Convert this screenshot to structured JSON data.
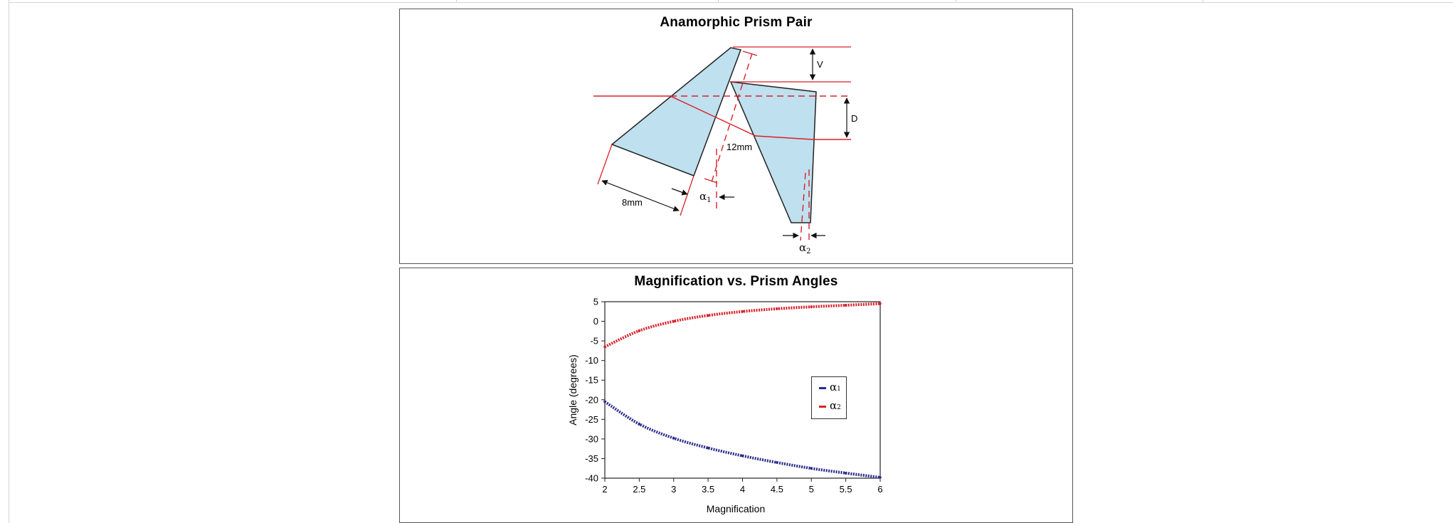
{
  "prism_diagram": {
    "title": "Anamorphic Prism Pair",
    "labels": {
      "v": "V",
      "d": "D",
      "spacing": "12mm",
      "length": "8mm",
      "alpha1": "α",
      "alpha1_sub": "1",
      "alpha2": "α",
      "alpha2_sub": "2"
    },
    "colors": {
      "prism_fill": "#bfe0ee",
      "beam": "#d8202a",
      "outline": "#222222"
    }
  },
  "chart_data": {
    "type": "line",
    "title": "Magnification vs. Prism Angles",
    "xlabel": "Magnification",
    "ylabel": "Angle (degrees)",
    "xlim": [
      2,
      6
    ],
    "ylim": [
      -40,
      5
    ],
    "x_ticks": [
      "2",
      "2.5",
      "3",
      "3.5",
      "4",
      "4.5",
      "5",
      "5.5",
      "6"
    ],
    "y_ticks": [
      "5",
      "0",
      "-5",
      "-10",
      "-15",
      "-20",
      "-25",
      "-30",
      "-35",
      "-40"
    ],
    "grid": false,
    "legend_position": "right",
    "x": [
      2,
      2.5,
      3,
      3.5,
      4,
      4.5,
      5,
      5.5,
      6
    ],
    "series": [
      {
        "name": "α",
        "sub": "1",
        "color": "#2b2b8c",
        "values": [
          -20.5,
          -26.2,
          -29.8,
          -32.3,
          -34.3,
          -36.0,
          -37.5,
          -38.7,
          -39.8
        ]
      },
      {
        "name": "α",
        "sub": "2",
        "color": "#d8202a",
        "values": [
          -6.5,
          -2.4,
          0.0,
          1.5,
          2.5,
          3.2,
          3.7,
          4.1,
          4.5
        ]
      }
    ]
  }
}
